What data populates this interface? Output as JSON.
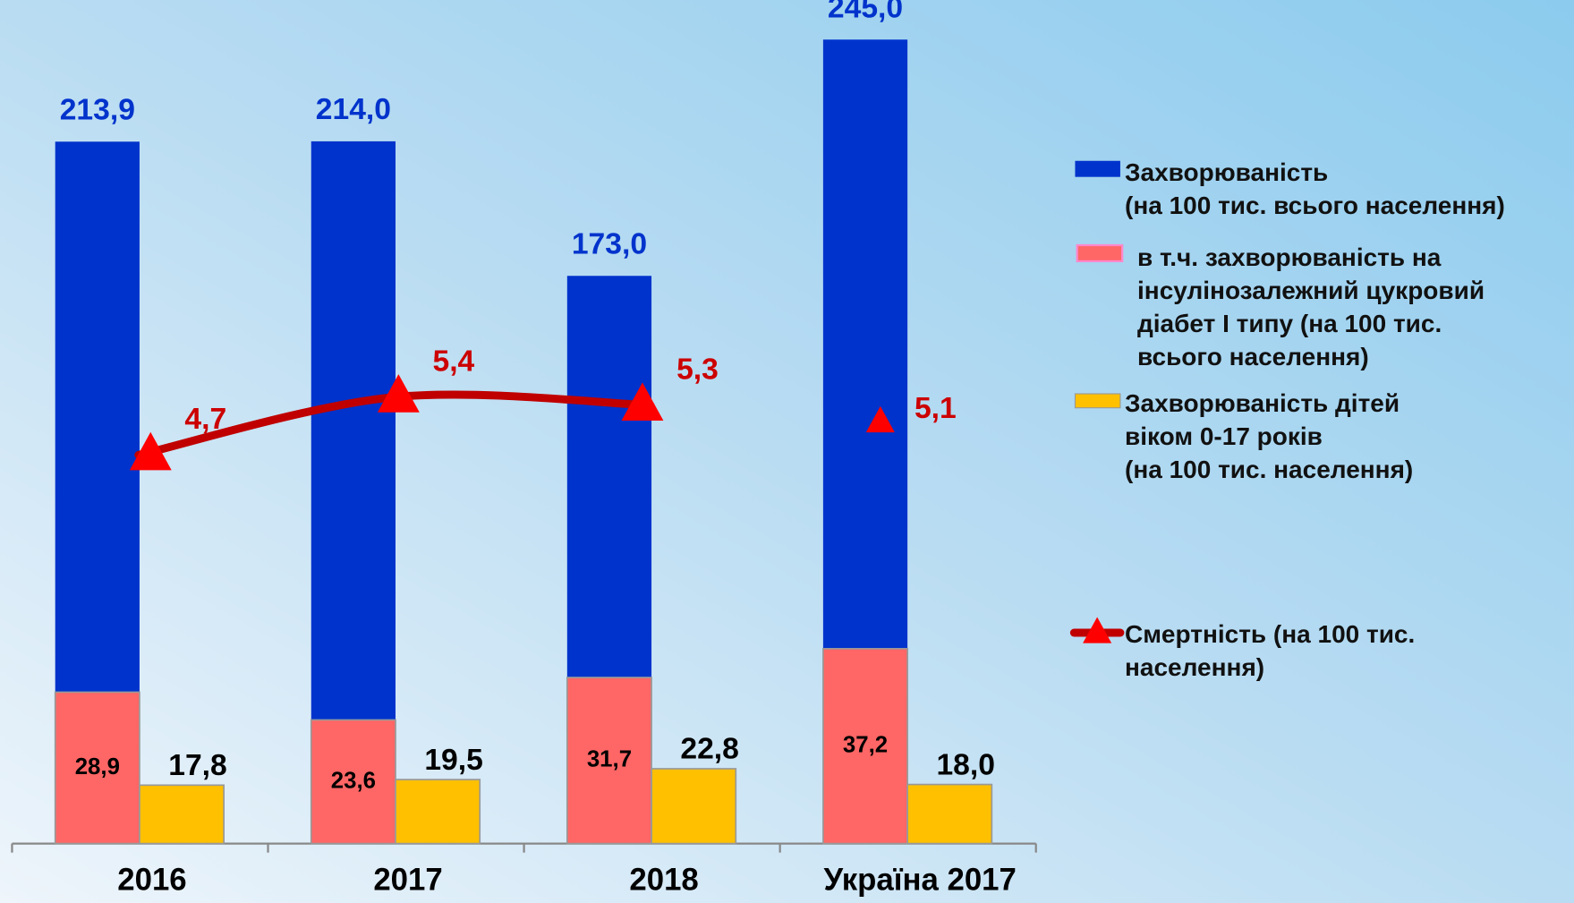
{
  "chart_data": {
    "type": "bar",
    "categories": [
      "2016",
      "2017",
      "2018",
      "Україна 2017"
    ],
    "ylim": [
      0,
      257
    ],
    "y2lim": [
      0,
      161
    ],
    "y3lim": [
      0,
      10.2
    ],
    "series": [
      {
        "name": "Захворюваність\n(на 100 тис. всього населення)",
        "type": "bar",
        "axis": "y",
        "color": "#0033cc",
        "values": [
          213.9,
          214.0,
          173.0,
          245.0
        ],
        "value_labels": [
          "213,9",
          "214,0",
          "173,0",
          "245,0"
        ]
      },
      {
        "name": "в т.ч. захворюваність на\nінсулінозалежний цукровий\nдіабет І  типу (на 100 тис.\nвсього населення)",
        "type": "bar",
        "axis": "y2",
        "color": "#ff6666",
        "values": [
          28.9,
          23.6,
          31.7,
          37.2
        ],
        "value_labels": [
          "28,9",
          "23,6",
          "31,7",
          "37,2"
        ]
      },
      {
        "name": "Захворюваність дітей\nвіком 0-17 років\n(на 100 тис. населення)",
        "type": "bar",
        "axis": "y",
        "color": "#ffc000",
        "values": [
          17.8,
          19.5,
          22.8,
          18.0
        ],
        "value_labels": [
          "17,8",
          "19,5",
          "22,8",
          "18,0"
        ]
      },
      {
        "name": "Смертність (на 100 тис.\nнаселення)",
        "type": "line",
        "axis": "y3",
        "color": "#c00000",
        "marker_color": "#ff0000",
        "values": [
          4.7,
          5.4,
          5.3,
          5.1
        ],
        "value_labels": [
          "4,7",
          "5,4",
          "5,3",
          "5,1"
        ],
        "gap_before_index": 3
      }
    ]
  }
}
